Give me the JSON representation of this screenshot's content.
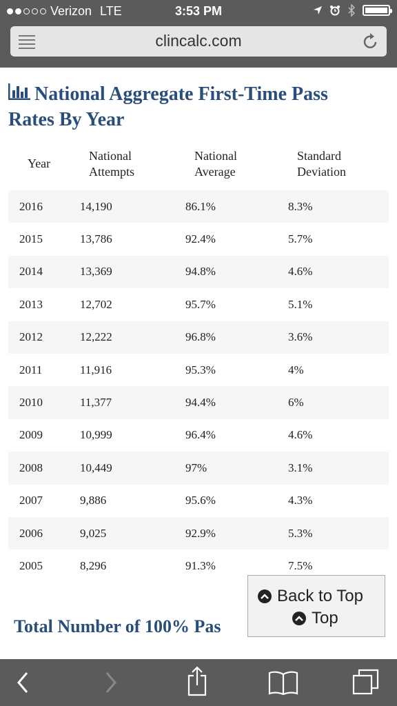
{
  "status": {
    "carrier": "Verizon",
    "network": "LTE",
    "time": "3:53 PM"
  },
  "browser": {
    "url": "clincalc.com"
  },
  "heading": {
    "line1": "National Aggregate First-Time Pass",
    "line2": "Rates By Year"
  },
  "table": {
    "headers": {
      "year": "Year",
      "attempts_1": "National",
      "attempts_2": "Attempts",
      "average_1": "National",
      "average_2": "Average",
      "stdev_1": "Standard",
      "stdev_2": "Deviation"
    },
    "rows": [
      [
        "2016",
        "14,190",
        "86.1%",
        "8.3%"
      ],
      [
        "2015",
        "13,786",
        "92.4%",
        "5.7%"
      ],
      [
        "2014",
        "13,369",
        "94.8%",
        "4.6%"
      ],
      [
        "2013",
        "12,702",
        "95.7%",
        "5.1%"
      ],
      [
        "2012",
        "12,222",
        "96.8%",
        "3.6%"
      ],
      [
        "2011",
        "11,916",
        "95.3%",
        "4%"
      ],
      [
        "2010",
        "11,377",
        "94.4%",
        "6%"
      ],
      [
        "2009",
        "10,999",
        "96.4%",
        "4.6%"
      ],
      [
        "2008",
        "10,449",
        "97%",
        "3.1%"
      ],
      [
        "2007",
        "9,886",
        "95.6%",
        "4.3%"
      ],
      [
        "2006",
        "9,025",
        "92.9%",
        "5.3%"
      ],
      [
        "2005",
        "8,296",
        "91.3%",
        "7.5%"
      ]
    ]
  },
  "section2": {
    "title": "Total Number of 100% Pas"
  },
  "back_to_top": {
    "label1": "Back to Top",
    "label2": "Top"
  },
  "colors": {
    "heading": "#2a4e7c",
    "chrome": "#5b5b5b"
  }
}
